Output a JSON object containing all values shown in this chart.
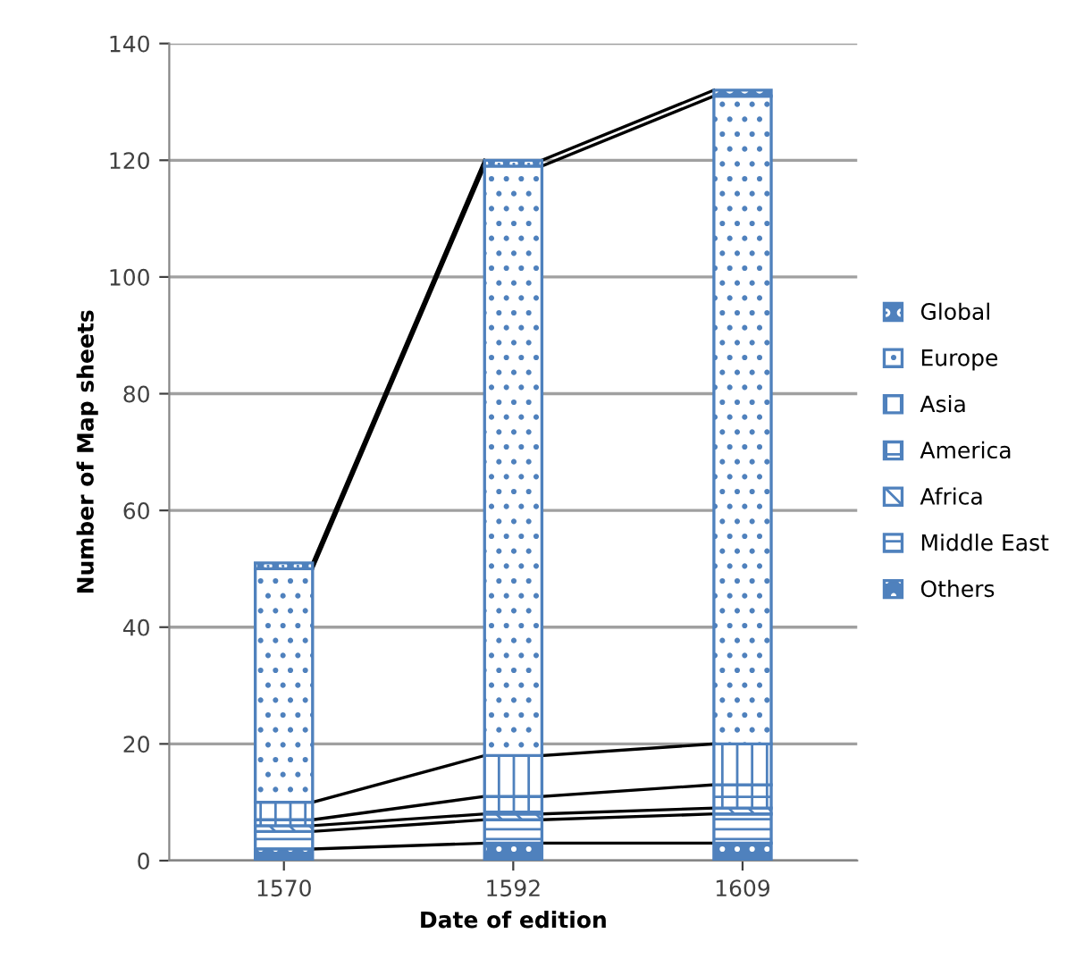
{
  "chart_data": {
    "type": "bar",
    "stacked": true,
    "xlabel": "Date of edition",
    "ylabel": "Number of Map sheets",
    "categories": [
      "1570",
      "1592",
      "1609"
    ],
    "series": [
      {
        "name": "Others",
        "color": "#4f81bd",
        "values": [
          2,
          3,
          3
        ]
      },
      {
        "name": "Middle East",
        "color": "#4f81bd",
        "values": [
          3,
          4,
          5
        ]
      },
      {
        "name": "Africa",
        "color": "#4f81bd",
        "values": [
          1,
          1,
          1
        ]
      },
      {
        "name": "America",
        "color": "#4f81bd",
        "values": [
          1,
          3,
          4
        ]
      },
      {
        "name": "Asia",
        "color": "#4f81bd",
        "values": [
          3,
          7,
          7
        ]
      },
      {
        "name": "Europe",
        "color": "#4f81bd",
        "values": [
          40,
          101,
          111
        ]
      },
      {
        "name": "Global",
        "color": "#4f81bd",
        "values": [
          1,
          1,
          1
        ]
      }
    ],
    "ylim": [
      0,
      140
    ],
    "yticks": [
      0,
      20,
      40,
      60,
      80,
      100,
      120,
      140
    ],
    "grid": "y",
    "legend": "right"
  }
}
